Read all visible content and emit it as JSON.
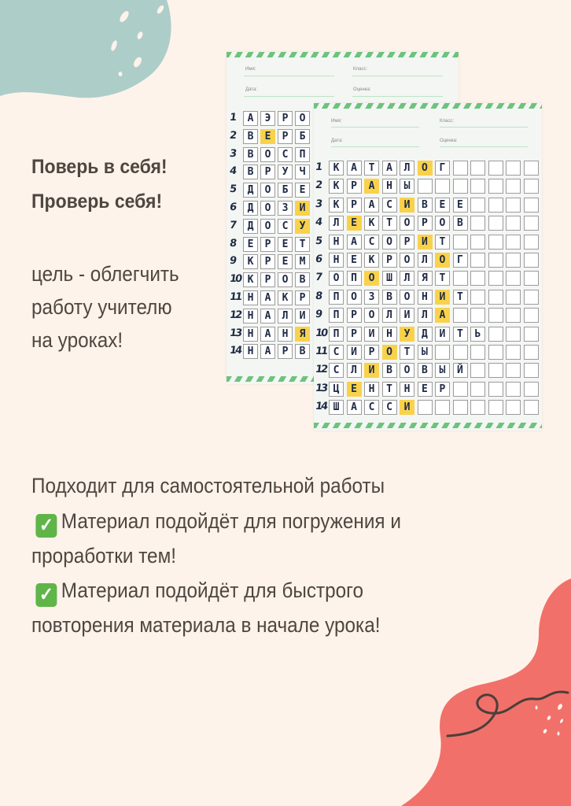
{
  "colors": {
    "background": "#fdf3ea",
    "teal_blob": "#adcdc9",
    "coral_blob": "#f2706a",
    "text": "#4f4640",
    "highlight": "#f9d24c",
    "stripe": "#6dc37c"
  },
  "heading": {
    "line1": "Поверь в себя!",
    "line2": "Проверь себя!"
  },
  "goal": {
    "line1": "цель - облегчить",
    "line2": "работу учителю",
    "line3": "на уроках!"
  },
  "features": {
    "intro": "Подходит для самостоятельной работы",
    "item1_line1": "Материал подойдёт для погружения и",
    "item1_line2": "проработки тем!",
    "item2_line1": "Материал подойдёт для быстрого",
    "item2_line2": "повторения материала в начале урока!",
    "check_icon": "white-check-mark-emoji",
    "check_glyph": "✓"
  },
  "worksheet_back": {
    "fields": {
      "name": "Имя:",
      "class": "Класс:",
      "date": "Дата:",
      "grade": "Оценка:"
    },
    "rows": [
      {
        "n": "1",
        "letters": "АЭРО",
        "hl": -1
      },
      {
        "n": "2",
        "letters": "ВЕРБ",
        "hl": 1
      },
      {
        "n": "3",
        "letters": "ВОСП",
        "hl": -1
      },
      {
        "n": "4",
        "letters": "ВРУЧ",
        "hl": -1
      },
      {
        "n": "5",
        "letters": "ДОБЕ",
        "hl": -1
      },
      {
        "n": "6",
        "letters": "ДОЗИ",
        "hl": 3
      },
      {
        "n": "7",
        "letters": "ДОСУ",
        "hl": 3
      },
      {
        "n": "8",
        "letters": "ЕРЕТ",
        "hl": -1
      },
      {
        "n": "9",
        "letters": "КРЕМ",
        "hl": -1
      },
      {
        "n": "10",
        "letters": "КРОВ",
        "hl": -1
      },
      {
        "n": "11",
        "letters": "НАКР",
        "hl": -1
      },
      {
        "n": "12",
        "letters": "НАЛИ",
        "hl": -1
      },
      {
        "n": "13",
        "letters": "НАНЯ",
        "hl": 3
      },
      {
        "n": "14",
        "letters": "НАРВ",
        "hl": -1
      }
    ]
  },
  "worksheet_front": {
    "fields": {
      "name": "Имя:",
      "class": "Класс:",
      "date": "Дата:",
      "grade": "Оценка:"
    },
    "rows": [
      {
        "n": "1",
        "letters": "КАТАЛОГ",
        "hl": 5
      },
      {
        "n": "2",
        "letters": "КРАНЫ",
        "hl": 2
      },
      {
        "n": "3",
        "letters": "КРАСИВЕЕ",
        "hl": 4
      },
      {
        "n": "4",
        "letters": "ЛЕКТОРОВ",
        "hl": 1
      },
      {
        "n": "5",
        "letters": "НАСОРИТ",
        "hl": 5
      },
      {
        "n": "6",
        "letters": "НЕКРОЛОГ",
        "hl": 6
      },
      {
        "n": "7",
        "letters": "ОПОШЛЯТ",
        "hl": 2
      },
      {
        "n": "8",
        "letters": "ПОЗВОНИТ",
        "hl": 6
      },
      {
        "n": "9",
        "letters": "ПРОЛИЛА",
        "hl": 6
      },
      {
        "n": "10",
        "letters": "ПРИНУДИТЬ",
        "hl": 4
      },
      {
        "n": "11",
        "letters": "СИРОТЫ",
        "hl": 3
      },
      {
        "n": "12",
        "letters": "СЛИВОВЫЙ",
        "hl": 2
      },
      {
        "n": "13",
        "letters": "ЦЕНТНЕР",
        "hl": 1
      },
      {
        "n": "14",
        "letters": "ШАССИ",
        "hl": 4
      }
    ]
  }
}
